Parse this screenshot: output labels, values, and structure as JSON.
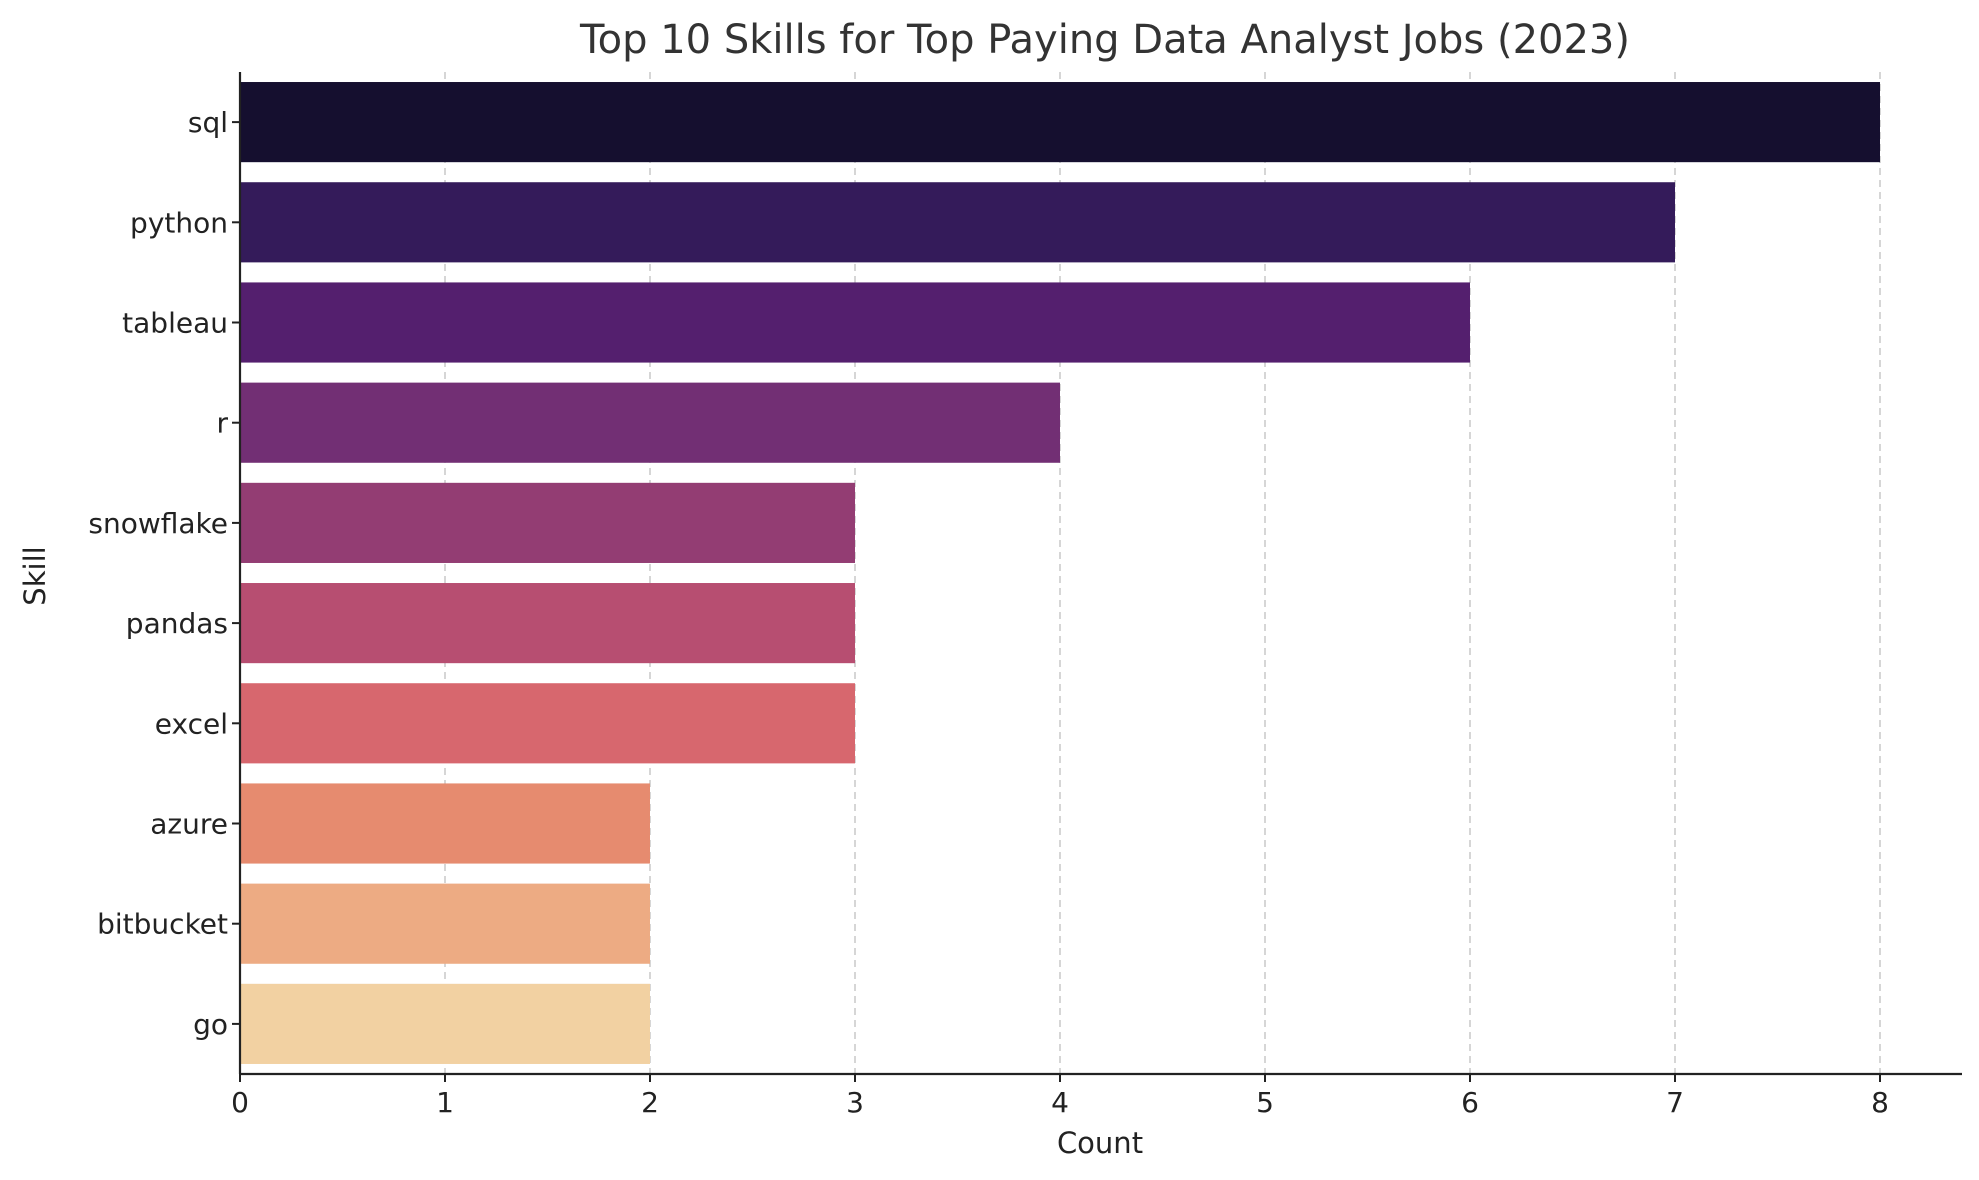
{
  "chart_data": {
    "type": "bar",
    "orientation": "horizontal",
    "title": "Top 10 Skills for Top Paying Data Analyst Jobs (2023)",
    "xlabel": "Count",
    "ylabel": "Skill",
    "categories": [
      "sql",
      "python",
      "tableau",
      "r",
      "snowflake",
      "pandas",
      "excel",
      "azure",
      "bitbucket",
      "go"
    ],
    "values": [
      8,
      7,
      6,
      4,
      3,
      3,
      3,
      2,
      2,
      2
    ],
    "colors": [
      "#150f2f",
      "#341b5a",
      "#541f6e",
      "#722f74",
      "#933d73",
      "#b74e71",
      "#d7676e",
      "#e68b6f",
      "#edab83",
      "#f2d1a2"
    ],
    "xlim": [
      0,
      8.4
    ],
    "xticks": [
      0,
      1,
      2,
      3,
      4,
      5,
      6,
      7,
      8
    ],
    "grid": {
      "x": true,
      "y": false,
      "style": "dashed"
    },
    "legend": "none"
  }
}
